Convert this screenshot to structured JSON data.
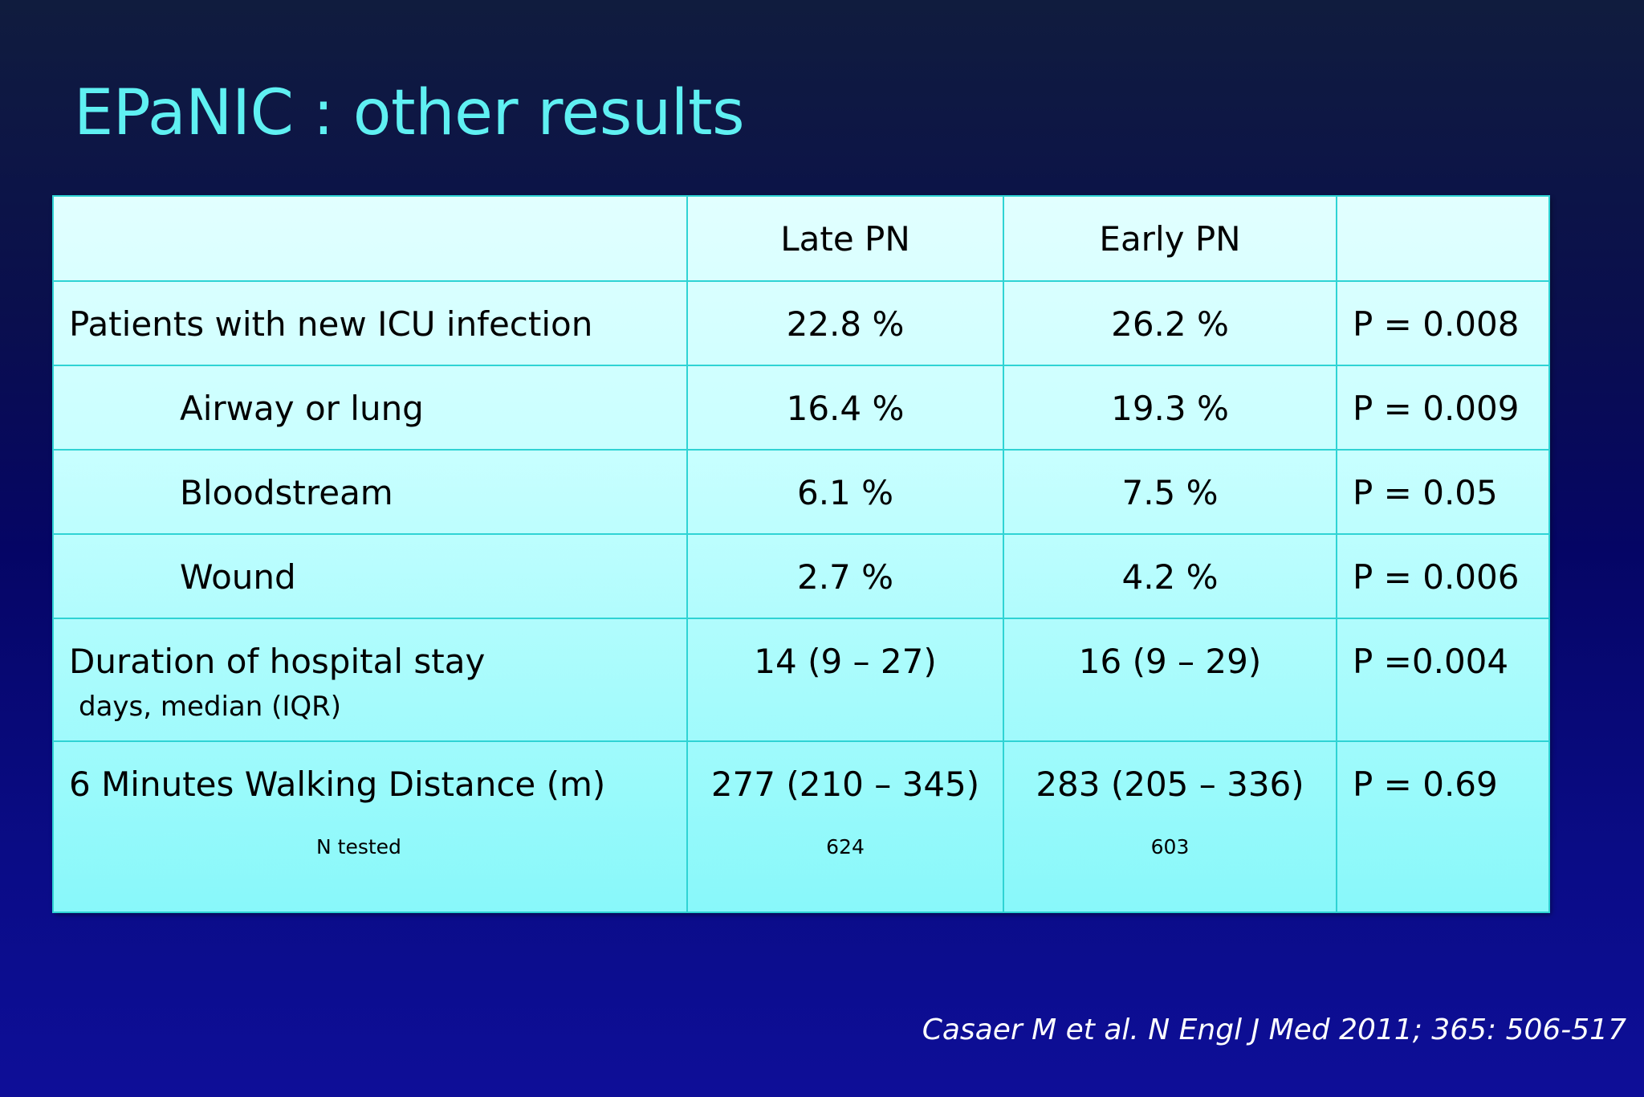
{
  "slide": {
    "title": "EPaNIC : other results",
    "citation": "Casaer M et al. N Engl J Med 2011; 365: 506-517"
  },
  "table": {
    "header": {
      "col1": "",
      "col2": "Late PN",
      "col3": "Early PN",
      "col4": ""
    },
    "rows": [
      {
        "label": "Patients with new ICU infection",
        "late": "22.8 %",
        "early": "26.2 %",
        "p": "P = 0.008"
      },
      {
        "label": "Airway or lung",
        "late": "16.4 %",
        "early": "19.3 %",
        "p": "P = 0.009"
      },
      {
        "label": "Bloodstream",
        "late": "6.1 %",
        "early": "7.5 %",
        "p": "P = 0.05"
      },
      {
        "label": "Wound",
        "late": "2.7 %",
        "early": "4.2 %",
        "p": "P = 0.006"
      },
      {
        "label": "Duration of hospital stay",
        "sublabel": "days, median (IQR)",
        "late": "14 (9 – 27)",
        "early": "16 (9 – 29)",
        "p": "P =0.004"
      },
      {
        "label": "6 Minutes Walking Distance (m)",
        "sublabel": "N tested",
        "late": "277 (210 – 345)",
        "late_n": "624",
        "early": "283 (205 – 336)",
        "early_n": "603",
        "p": "P = 0.69"
      }
    ]
  },
  "colors": {
    "title": "#5ff0f2",
    "table_border": "#2fd3d4",
    "citation": "#ffffff"
  }
}
